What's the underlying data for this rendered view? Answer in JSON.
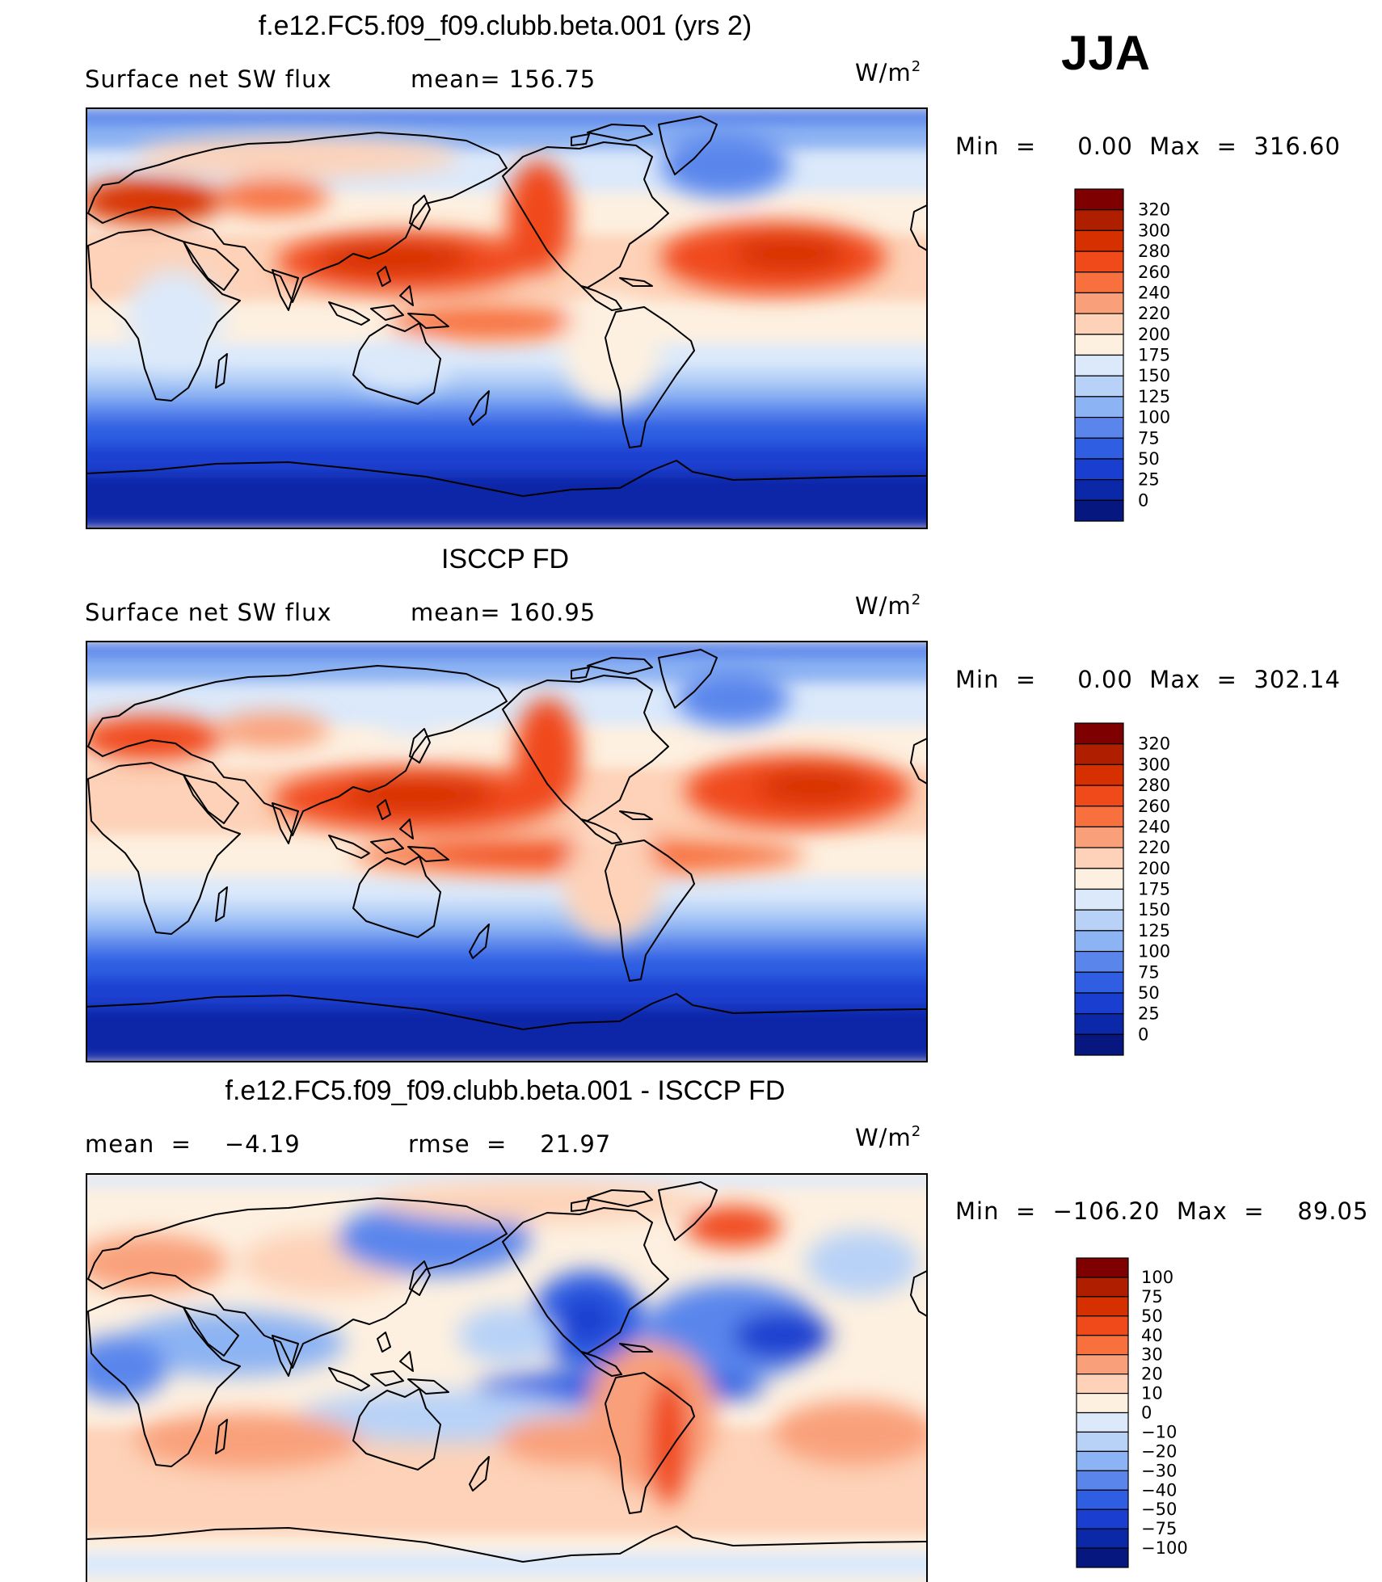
{
  "season": "JJA",
  "units": "W/m",
  "units_sup": "2",
  "panels": [
    {
      "title": "f.e12.FC5.f09_f09.clubb.beta.001 (yrs 2)",
      "left_label": "Surface net SW flux",
      "stat1": "mean=  156.75",
      "stat2": "",
      "minmax": "Min  =     0.00  Max  =  316.60"
    },
    {
      "title": "ISCCP FD",
      "left_label": "Surface net SW flux",
      "stat1": "mean=  160.95",
      "stat2": "",
      "minmax": "Min  =     0.00  Max  =  302.14"
    },
    {
      "title": "f.e12.FC5.f09_f09.clubb.beta.001 - ISCCP FD",
      "left_label": "mean  =    −4.19",
      "stat1": "rmse  =    21.97",
      "stat2": "",
      "minmax": "Min  =  −106.20  Max  =    89.05"
    }
  ],
  "colorbars": {
    "flux": {
      "labels": [
        "320",
        "300",
        "280",
        "260",
        "240",
        "220",
        "200",
        "175",
        "150",
        "125",
        "100",
        "75",
        "50",
        "25",
        "0"
      ],
      "colors": [
        "#7f0000",
        "#b01e00",
        "#d73000",
        "#f04a1a",
        "#f7703e",
        "#f9a07a",
        "#fdd2b8",
        "#fdf0e0",
        "#dce9fa",
        "#b8d2f7",
        "#8cb3f3",
        "#5a86ec",
        "#2f5ee3",
        "#1a3fd0",
        "#0a28a8",
        "#061880"
      ]
    },
    "diff": {
      "labels": [
        "100",
        "75",
        "50",
        "40",
        "30",
        "20",
        "10",
        "0",
        "−10",
        "−20",
        "−30",
        "−40",
        "−50",
        "−75",
        "−100"
      ],
      "colors": [
        "#7f0000",
        "#b01e00",
        "#d73000",
        "#f04a1a",
        "#f7703e",
        "#f9a07a",
        "#fdd2b8",
        "#fdf0e0",
        "#dce9fa",
        "#b8d2f7",
        "#8cb3f3",
        "#5a86ec",
        "#2f5ee3",
        "#1a3fd0",
        "#0a28a8",
        "#061880"
      ]
    }
  },
  "chart_data": [
    {
      "type": "heatmap",
      "title": "f.e12.FC5.f09_f09.clubb.beta.001 (yrs 2)",
      "variable": "Surface net SW flux",
      "units": "W/m2",
      "mean": 156.75,
      "min": 0.0,
      "max": 316.6,
      "levels": [
        0,
        25,
        50,
        75,
        100,
        125,
        150,
        175,
        200,
        220,
        240,
        260,
        280,
        300,
        320
      ]
    },
    {
      "type": "heatmap",
      "title": "ISCCP FD",
      "variable": "Surface net SW flux",
      "units": "W/m2",
      "mean": 160.95,
      "min": 0.0,
      "max": 302.14,
      "levels": [
        0,
        25,
        50,
        75,
        100,
        125,
        150,
        175,
        200,
        220,
        240,
        260,
        280,
        300,
        320
      ]
    },
    {
      "type": "heatmap",
      "title": "f.e12.FC5.f09_f09.clubb.beta.001 - ISCCP FD",
      "units": "W/m2",
      "mean": -4.19,
      "rmse": 21.97,
      "min": -106.2,
      "max": 89.05,
      "levels": [
        -100,
        -75,
        -50,
        -40,
        -30,
        -20,
        -10,
        0,
        10,
        20,
        30,
        40,
        50,
        75,
        100
      ]
    }
  ]
}
